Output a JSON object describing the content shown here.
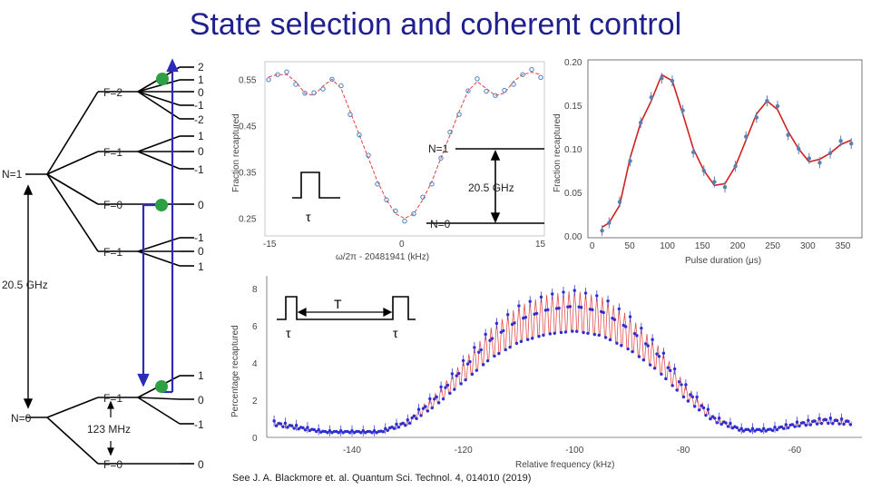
{
  "title": "State selection and coherent control",
  "diagram": {
    "n1_label": "N=1",
    "n0_label": "N=0",
    "gap_label": "20.5 GHz",
    "hf_label": "123 MHz",
    "upper_manifolds": [
      {
        "label": "F=2",
        "mf": [
          "2",
          "1",
          "0",
          "-1",
          "-2"
        ]
      },
      {
        "label": "F=1",
        "mf": [
          "1",
          "0",
          "-1"
        ]
      },
      {
        "label": "F=0",
        "mf": [
          "0"
        ]
      },
      {
        "label": "F=1",
        "mf": [
          "-1",
          "0",
          "1"
        ]
      }
    ],
    "lower_manifolds": [
      {
        "label": "F=1",
        "mf": [
          "1",
          "0",
          "-1"
        ]
      },
      {
        "label": "F=0",
        "mf": [
          "0"
        ]
      }
    ],
    "colors": {
      "population": "#2ea043",
      "transition": "#2b2bb8"
    }
  },
  "chart_data": [
    {
      "type": "scatter",
      "title": "",
      "xlabel": "ω/2π - 20481941 (kHz)",
      "ylabel": "Fraction recaptured",
      "xticks": [
        "-15",
        "0",
        "15"
      ],
      "yticks": [
        "0.25",
        "0.35",
        "0.45",
        "0.55"
      ],
      "xlim": [
        -15,
        15
      ],
      "ylim": [
        0.22,
        0.58
      ],
      "x": [
        -15,
        -14,
        -13,
        -12,
        -11,
        -10,
        -9,
        -8,
        -7,
        -6,
        -5,
        -4,
        -3,
        -2,
        -1,
        0,
        1,
        2,
        3,
        4,
        5,
        6,
        7,
        8,
        9,
        10,
        11,
        12,
        13,
        14,
        15
      ],
      "y": [
        0.555,
        0.56,
        0.56,
        0.545,
        0.52,
        0.515,
        0.535,
        0.55,
        0.53,
        0.48,
        0.43,
        0.38,
        0.33,
        0.29,
        0.26,
        0.25,
        0.26,
        0.29,
        0.33,
        0.38,
        0.43,
        0.48,
        0.525,
        0.545,
        0.53,
        0.515,
        0.52,
        0.545,
        0.56,
        0.565,
        0.56
      ]
    },
    {
      "type": "scatter",
      "title": "",
      "xlabel": "Pulse duration (μs)",
      "ylabel": "Fraction recaptured",
      "xticks": [
        "0",
        "50",
        "100",
        "150",
        "200",
        "250",
        "300",
        "350"
      ],
      "yticks": [
        "0.00",
        "0.05",
        "0.10",
        "0.15",
        "0.20"
      ],
      "xlim": [
        -5,
        375
      ],
      "ylim": [
        0,
        0.2
      ],
      "x": [
        10,
        20,
        35,
        50,
        65,
        80,
        95,
        110,
        125,
        140,
        155,
        170,
        185,
        200,
        215,
        230,
        245,
        260,
        275,
        290,
        305,
        320,
        335,
        350,
        365
      ],
      "y": [
        0.01,
        0.015,
        0.035,
        0.09,
        0.13,
        0.155,
        0.185,
        0.178,
        0.14,
        0.1,
        0.075,
        0.058,
        0.06,
        0.08,
        0.11,
        0.14,
        0.155,
        0.145,
        0.12,
        0.1,
        0.085,
        0.088,
        0.095,
        0.105,
        0.11
      ]
    },
    {
      "type": "scatter",
      "title": "",
      "xlabel": "Relative frequency (kHz)",
      "ylabel": "Percentage recaptured",
      "xticks": [
        "-140",
        "-120",
        "-100",
        "-80",
        "-60"
      ],
      "yticks": [
        "0",
        "2",
        "4",
        "6",
        "8"
      ],
      "xlim": [
        -155,
        -49
      ],
      "ylim": [
        0,
        8.4
      ],
      "envelope_x": [
        -155,
        -145,
        -135,
        -130,
        -125,
        -120,
        -115,
        -110,
        -105,
        -100,
        -95,
        -90,
        -85,
        -80,
        -75,
        -70,
        -65,
        -60,
        -55,
        -50
      ],
      "envelope_y": [
        0.8,
        0.3,
        0.3,
        0.8,
        2.0,
        3.5,
        5.0,
        6.0,
        6.5,
        6.7,
        6.4,
        5.5,
        4.2,
        2.4,
        1.0,
        0.4,
        0.4,
        0.7,
        0.9,
        0.8
      ]
    }
  ],
  "insets": {
    "tau_label": "τ",
    "n1_label": "N=1",
    "n0_label": "N=0",
    "splitting_label": "20.5 GHz",
    "ramsey_T_label": "T",
    "ramsey_tau1": "τ",
    "ramsey_tau2": "τ"
  },
  "citation": "See J. A. Blackmore et. al. Quantum Sci. Technol. 4, 014010 (2019)"
}
